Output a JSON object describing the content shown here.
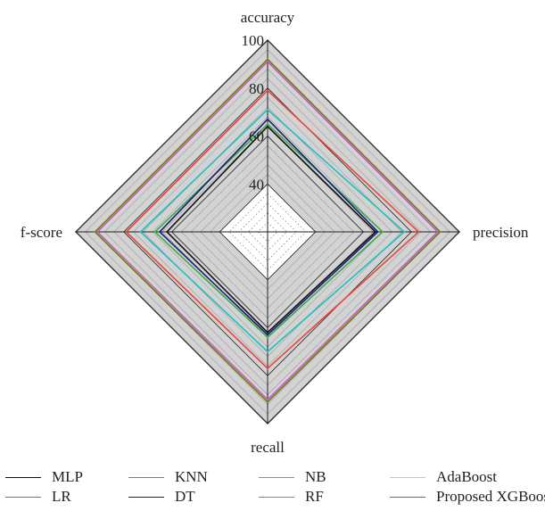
{
  "chart_data": {
    "type": "radar",
    "axes": [
      "accuracy",
      "precision",
      "recall",
      "f-score"
    ],
    "rlim": [
      20,
      100
    ],
    "ticks": [
      40,
      60,
      80,
      100
    ],
    "grid": true,
    "legend_position": "bottom",
    "series": [
      {
        "name": "MLP",
        "color": "#111111",
        "values": [
          64,
          65,
          62,
          62
        ]
      },
      {
        "name": "LR",
        "color": "#e8463a",
        "values": [
          79,
          83,
          77,
          79
        ]
      },
      {
        "name": "KNN",
        "color": "#3aad4a",
        "values": [
          65,
          68,
          64,
          67
        ]
      },
      {
        "name": "DT",
        "color": "#1c1c7c",
        "values": [
          67,
          66,
          63,
          65
        ]
      },
      {
        "name": "NB",
        "color": "#1fbfc0",
        "values": [
          71,
          77,
          70,
          73
        ]
      },
      {
        "name": "RF",
        "color": "#c45bc4",
        "values": [
          91,
          91,
          90,
          91
        ]
      },
      {
        "name": "AdaBoost",
        "color": "#f0d20c",
        "values": [
          92,
          92,
          91,
          92
        ]
      },
      {
        "name": "Proposed XGBoost",
        "color": "#6e7a1e",
        "values": [
          92,
          92,
          91,
          92
        ]
      }
    ]
  }
}
